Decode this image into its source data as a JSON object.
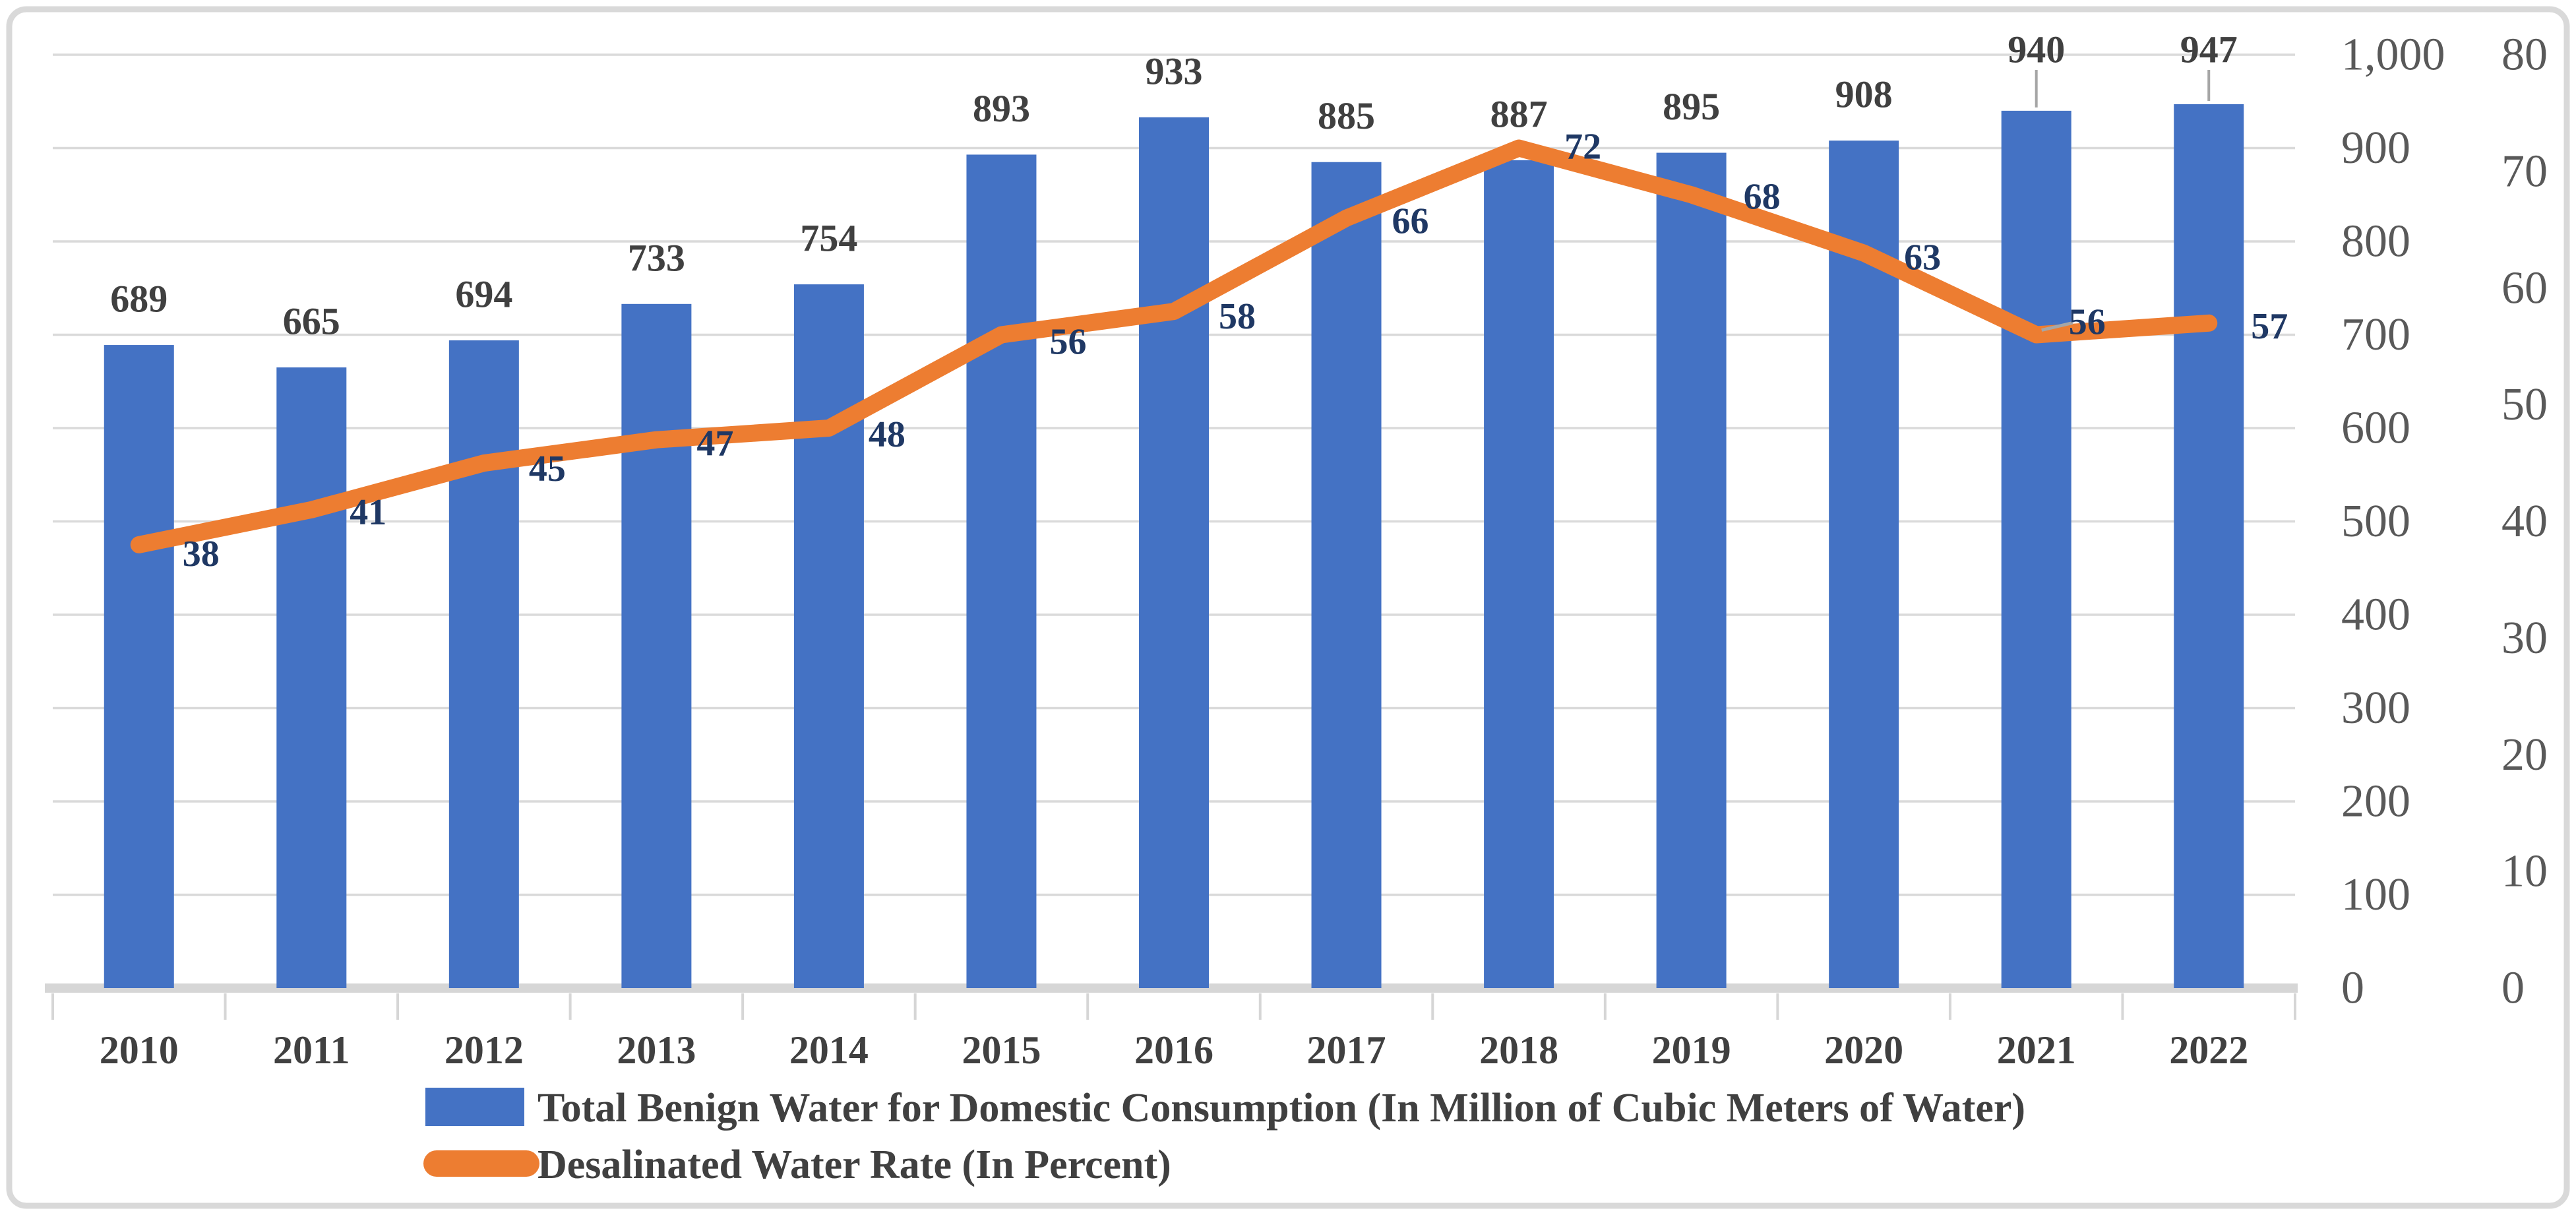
{
  "chart_data": {
    "type": "combo-bar-line",
    "categories": [
      "2010",
      "2011",
      "2012",
      "2013",
      "2014",
      "2015",
      "2016",
      "2017",
      "2018",
      "2019",
      "2020",
      "2021",
      "2022"
    ],
    "series": [
      {
        "name": "Total Benign Water for Domestic Consumption (In Million of Cubic Meters of Water)",
        "chart_type": "bar",
        "axis": "primary",
        "color": "#4472C4",
        "values": [
          689,
          665,
          694,
          733,
          754,
          893,
          933,
          885,
          887,
          895,
          908,
          940,
          947
        ],
        "data_labels": [
          689,
          665,
          694,
          733,
          754,
          893,
          933,
          885,
          887,
          895,
          908,
          940,
          947
        ]
      },
      {
        "name": "Desalinated Water Rate (In Percent)",
        "chart_type": "line",
        "axis": "secondary",
        "color": "#ED7D31",
        "values": [
          38,
          41,
          45,
          47,
          48,
          56,
          58,
          66,
          72,
          68,
          63,
          56,
          57
        ],
        "data_labels": [
          38,
          41,
          45,
          47,
          48,
          56,
          58,
          66,
          72,
          68,
          63,
          56,
          57
        ]
      }
    ],
    "primary_axis": {
      "side": "right-inner",
      "min": 0,
      "max": 1000,
      "step": 100,
      "tick_labels": [
        "0",
        "100",
        "200",
        "300",
        "400",
        "500",
        "600",
        "700",
        "800",
        "900",
        "1,000"
      ]
    },
    "secondary_axis": {
      "side": "right-outer",
      "min": 0,
      "max": 80,
      "step": 10,
      "tick_labels": [
        "0",
        "10",
        "20",
        "30",
        "40",
        "50",
        "60",
        "70",
        "80"
      ]
    },
    "gridlines": "horizontal",
    "legend_position": "bottom"
  },
  "styles": {
    "background": "#FFFFFF",
    "bar_color": "#4472C4",
    "line_color": "#ED7D31",
    "gridline_color": "#DADADA",
    "axis_line_color": "#D6D6D6",
    "tick_color": "#D6D6D6",
    "border_color": "#D9D9D9",
    "axis_label_color": "#595959",
    "bar_label_color": "#404040",
    "line_label_color": "#1F3864",
    "year_label_color": "#404040",
    "legend_text_color": "#404040",
    "leader_line_color": "#A6A6A6"
  }
}
